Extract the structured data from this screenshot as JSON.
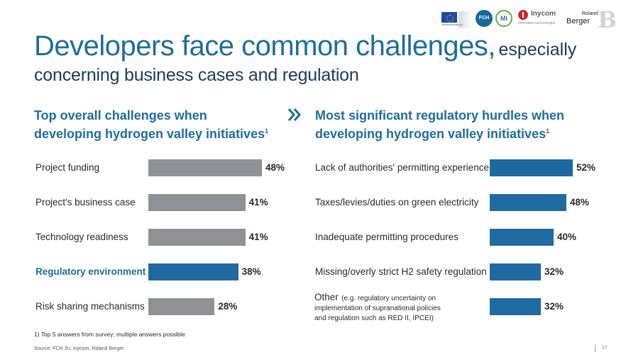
{
  "header": {
    "title_main": "Developers face common challenges,",
    "title_especially": "especially",
    "title_sub": "concerning business cases and regulation",
    "logos": {
      "eu": "eu-flag-logo",
      "fch": "FCH",
      "mi": "MI",
      "inycom": "Inycom",
      "inycom_sub": "innovation technologies",
      "rb_line1": "Roland",
      "rb_line2": "Berger",
      "rb_mark": "B"
    }
  },
  "left": {
    "title_line1": "Top overall challenges when",
    "title_line2": "developing hydrogen valley initiatives",
    "title_sup": "1"
  },
  "right": {
    "title_line1": "Most significant regulatory hurdles when",
    "title_line2": "developing hydrogen valley initiatives",
    "title_sup": "1",
    "other_label": "Other",
    "other_note_1": "(e.g. regulatory uncertainty on",
    "other_note_2": "implementation of supranational policies",
    "other_note_3": "and regulation such as RED II, IPCEI)"
  },
  "chart_data": [
    {
      "type": "bar",
      "orientation": "horizontal",
      "title": "Top overall challenges when developing hydrogen valley initiatives",
      "categories": [
        "Project funding",
        "Project's business case",
        "Technology readiness",
        "Regulatory environment",
        "Risk sharing mechanisms"
      ],
      "values": [
        48,
        41,
        41,
        38,
        28
      ],
      "value_labels": [
        "48%",
        "41%",
        "41%",
        "38%",
        "28%"
      ],
      "highlight": [
        false,
        false,
        false,
        true,
        false
      ],
      "unit": "%",
      "xlim": [
        0,
        100
      ],
      "grid": false,
      "colors": {
        "default": "#8e9195",
        "highlight": "#1f6aa1"
      }
    },
    {
      "type": "bar",
      "orientation": "horizontal",
      "title": "Most significant regulatory hurdles when developing hydrogen valley initiatives",
      "categories": [
        "Lack of authorities' permitting experience",
        "Taxes/levies/duties on green electricity",
        "Inadequate permitting procedures",
        "Missing/overly strict H2 safety regulation",
        "Other"
      ],
      "values": [
        52,
        48,
        40,
        32,
        32
      ],
      "value_labels": [
        "52%",
        "48%",
        "40%",
        "32%",
        "32%"
      ],
      "unit": "%",
      "xlim": [
        0,
        100
      ],
      "grid": false,
      "colors": {
        "default": "#1f6aa1"
      }
    }
  ],
  "footnote": "1) Top 5 answers from survey; multiple answers possible",
  "source": "Source: FCH JU, Inycom, Roland Berger",
  "page_number": "17",
  "colors": {
    "title_blue": "#1e6e9a",
    "dark_navy": "#1d3b56",
    "bar_gray": "#8e9195",
    "bar_blue": "#1f6aa1"
  }
}
